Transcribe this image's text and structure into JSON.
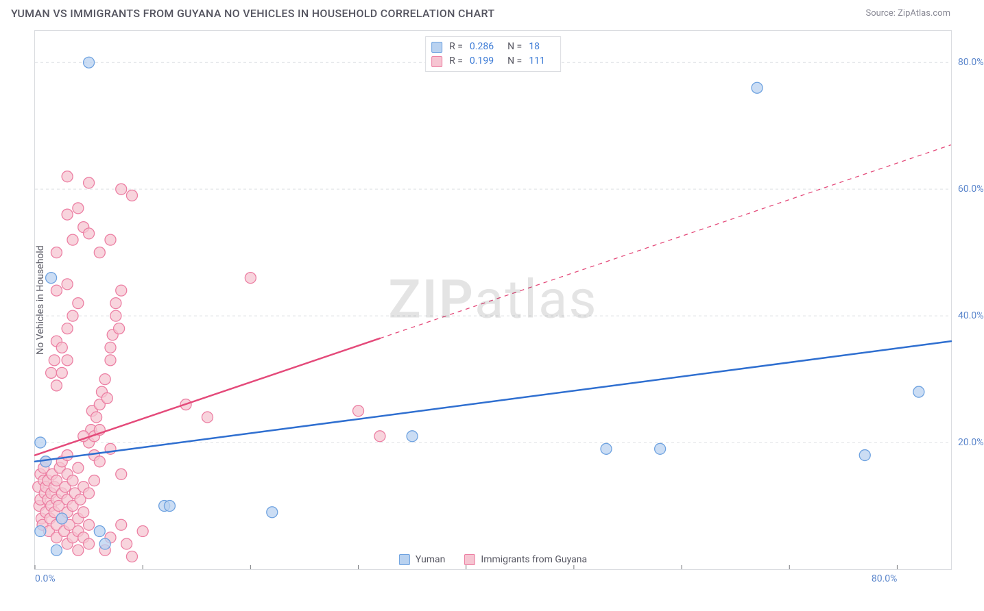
{
  "header": {
    "title": "YUMAN VS IMMIGRANTS FROM GUYANA NO VEHICLES IN HOUSEHOLD CORRELATION CHART",
    "source_prefix": "Source: ",
    "source_name": "ZipAtlas.com"
  },
  "axes": {
    "ylabel": "No Vehicles in Household",
    "xlim": [
      0,
      85
    ],
    "ylim": [
      0,
      85
    ],
    "x_ticks": [
      0,
      10,
      20,
      30,
      40,
      50,
      60,
      70,
      80
    ],
    "y_ticks": [
      20,
      40,
      60,
      80
    ],
    "x_tick_labels": [
      "0.0%",
      "",
      "",
      "",
      "",
      "",
      "",
      "",
      "80.0%"
    ],
    "y_tick_labels": [
      "20.0%",
      "40.0%",
      "60.0%",
      "80.0%"
    ],
    "grid_color": "#dcdfe3",
    "grid_dash": "4,4",
    "tick_color": "#77797d"
  },
  "watermark": {
    "text_bold": "ZIP",
    "text_rest": "atlas"
  },
  "series": [
    {
      "name": "Yuman",
      "color_fill": "#b9d2f0",
      "color_stroke": "#6ea2e0",
      "marker_radius": 8,
      "marker_opacity": 0.75,
      "R": "0.286",
      "N": "18",
      "trend": {
        "x1": 0,
        "y1": 17,
        "x2": 85,
        "y2": 36,
        "solid_x_end": 85,
        "line_color": "#2f6fd0",
        "line_width": 2.5
      },
      "points": [
        [
          0.5,
          6
        ],
        [
          0.5,
          20
        ],
        [
          1,
          17
        ],
        [
          1.5,
          46
        ],
        [
          2,
          3
        ],
        [
          2.5,
          8
        ],
        [
          5,
          80
        ],
        [
          6,
          6
        ],
        [
          6.5,
          4
        ],
        [
          12,
          10
        ],
        [
          12.5,
          10
        ],
        [
          22,
          9
        ],
        [
          35,
          21
        ],
        [
          53,
          19
        ],
        [
          58,
          19
        ],
        [
          67,
          76
        ],
        [
          77,
          18
        ],
        [
          82,
          28
        ]
      ]
    },
    {
      "name": "Immigrants from Guyana",
      "color_fill": "#f6c5d2",
      "color_stroke": "#ec7fa3",
      "marker_radius": 8,
      "marker_opacity": 0.75,
      "R": "0.199",
      "N": "111",
      "trend": {
        "x1": 0,
        "y1": 18,
        "x2": 85,
        "y2": 67,
        "solid_x_end": 32,
        "line_color": "#e44a7a",
        "line_width": 2.5
      },
      "points": [
        [
          0.3,
          13
        ],
        [
          0.4,
          10
        ],
        [
          0.5,
          11
        ],
        [
          0.5,
          15
        ],
        [
          0.6,
          8
        ],
        [
          0.7,
          7
        ],
        [
          0.8,
          14
        ],
        [
          0.8,
          16
        ],
        [
          0.9,
          12
        ],
        [
          1,
          9
        ],
        [
          1,
          13
        ],
        [
          1,
          17
        ],
        [
          1.2,
          11
        ],
        [
          1.2,
          14
        ],
        [
          1.3,
          6
        ],
        [
          1.4,
          8
        ],
        [
          1.5,
          10
        ],
        [
          1.5,
          12
        ],
        [
          1.6,
          15
        ],
        [
          1.8,
          9
        ],
        [
          1.8,
          13
        ],
        [
          2,
          5
        ],
        [
          2,
          7
        ],
        [
          2,
          11
        ],
        [
          2,
          14
        ],
        [
          2.2,
          10
        ],
        [
          2.3,
          16
        ],
        [
          2.5,
          8
        ],
        [
          2.5,
          12
        ],
        [
          2.5,
          17
        ],
        [
          2.7,
          6
        ],
        [
          2.8,
          13
        ],
        [
          3,
          4
        ],
        [
          3,
          9
        ],
        [
          3,
          11
        ],
        [
          3,
          15
        ],
        [
          3,
          18
        ],
        [
          3.2,
          7
        ],
        [
          3.5,
          5
        ],
        [
          3.5,
          10
        ],
        [
          3.5,
          14
        ],
        [
          3.7,
          12
        ],
        [
          4,
          3
        ],
        [
          4,
          6
        ],
        [
          4,
          8
        ],
        [
          4,
          16
        ],
        [
          4.2,
          11
        ],
        [
          4.5,
          5
        ],
        [
          4.5,
          9
        ],
        [
          4.5,
          13
        ],
        [
          5,
          4
        ],
        [
          5,
          7
        ],
        [
          5,
          12
        ],
        [
          5,
          20
        ],
        [
          5.2,
          22
        ],
        [
          5.3,
          25
        ],
        [
          5.5,
          18
        ],
        [
          5.5,
          21
        ],
        [
          5.7,
          24
        ],
        [
          6,
          22
        ],
        [
          6,
          26
        ],
        [
          6.2,
          28
        ],
        [
          6.5,
          30
        ],
        [
          6.7,
          27
        ],
        [
          7,
          33
        ],
        [
          7,
          35
        ],
        [
          7.2,
          37
        ],
        [
          7.5,
          40
        ],
        [
          7.5,
          42
        ],
        [
          7.8,
          38
        ],
        [
          8,
          44
        ],
        [
          1.5,
          31
        ],
        [
          1.8,
          33
        ],
        [
          2,
          36
        ],
        [
          2,
          29
        ],
        [
          2.5,
          31
        ],
        [
          2.5,
          35
        ],
        [
          3,
          33
        ],
        [
          3,
          38
        ],
        [
          3.5,
          40
        ],
        [
          4,
          42
        ],
        [
          2,
          44
        ],
        [
          3,
          45
        ],
        [
          2,
          50
        ],
        [
          3.5,
          52
        ],
        [
          4.5,
          54
        ],
        [
          3,
          56
        ],
        [
          4,
          57
        ],
        [
          5,
          53
        ],
        [
          6,
          50
        ],
        [
          7,
          52
        ],
        [
          3,
          62
        ],
        [
          5,
          61
        ],
        [
          8,
          60
        ],
        [
          9,
          59
        ],
        [
          6.5,
          3
        ],
        [
          7,
          5
        ],
        [
          8,
          7
        ],
        [
          8.5,
          4
        ],
        [
          9,
          2
        ],
        [
          10,
          6
        ],
        [
          14,
          26
        ],
        [
          16,
          24
        ],
        [
          20,
          46
        ],
        [
          30,
          25
        ],
        [
          32,
          21
        ],
        [
          6,
          17
        ],
        [
          7,
          19
        ],
        [
          8,
          15
        ],
        [
          4.5,
          21
        ],
        [
          5.5,
          14
        ]
      ]
    }
  ],
  "legend": {
    "items": [
      "Yuman",
      "Immigrants from Guyana"
    ]
  },
  "colors": {
    "frame_border": "#dadce0",
    "text": "#555560",
    "axis_value": "#5b86cc"
  }
}
